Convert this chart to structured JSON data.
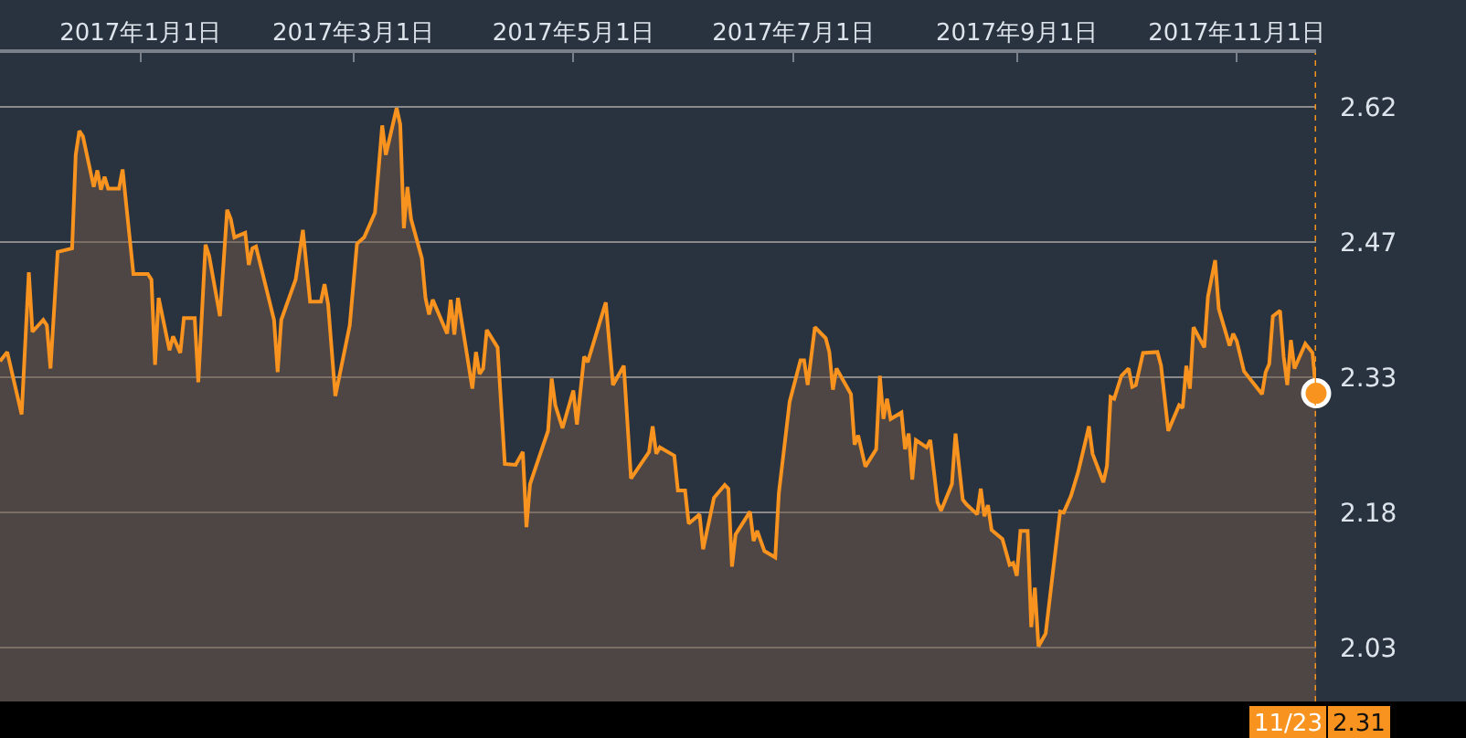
{
  "chart_data": {
    "type": "area",
    "xlim": [
      "2016-11-23",
      "2017-11-23"
    ],
    "xticks": [
      {
        "value": "2017-01-01",
        "label": "2017年1月1日"
      },
      {
        "value": "2017-03-01",
        "label": "2017年3月1日"
      },
      {
        "value": "2017-05-01",
        "label": "2017年5月1日"
      },
      {
        "value": "2017-07-01",
        "label": "2017年7月1日"
      },
      {
        "value": "2017-09-01",
        "label": "2017年9月1日"
      },
      {
        "value": "2017-11-01",
        "label": "2017年11月1日"
      }
    ],
    "ylim": [
      1.974,
      2.681
    ],
    "yticks": [
      {
        "value": 2.0325,
        "label": "2.03"
      },
      {
        "value": 2.18,
        "label": "2.18"
      },
      {
        "value": 2.3275,
        "label": "2.33"
      },
      {
        "value": 2.475,
        "label": "2.47"
      },
      {
        "value": 2.6225,
        "label": "2.62"
      }
    ],
    "grid": "y",
    "ref_lines": [
      {
        "axis": "x",
        "value": "2017-11-23",
        "color": "#f7931e",
        "line_style": "dotted"
      }
    ],
    "annotations": [
      "11/23",
      "2.31"
    ],
    "series": [
      {
        "color": "#f7931e",
        "x": [
          "2016-11-23",
          "2016-11-25",
          "2016-11-29",
          "2016-12-01",
          "2016-12-02",
          "2016-12-05",
          "2016-12-06",
          "2016-12-07",
          "2016-12-09",
          "2016-12-13",
          "2016-12-14",
          "2016-12-15",
          "2016-12-16",
          "2016-12-19",
          "2016-12-20",
          "2016-12-21",
          "2016-12-22",
          "2016-12-23",
          "2016-12-26",
          "2016-12-27",
          "2016-12-30",
          "2017-01-03",
          "2017-01-04",
          "2017-01-05",
          "2017-01-06",
          "2017-01-09",
          "2017-01-10",
          "2017-01-12",
          "2017-01-13",
          "2017-01-16",
          "2017-01-17",
          "2017-01-19",
          "2017-01-20",
          "2017-01-23",
          "2017-01-25",
          "2017-01-26",
          "2017-01-27",
          "2017-01-30",
          "2017-01-31",
          "2017-02-01",
          "2017-02-02",
          "2017-02-07",
          "2017-02-08",
          "2017-02-09",
          "2017-02-13",
          "2017-02-15",
          "2017-02-17",
          "2017-02-20",
          "2017-02-21",
          "2017-02-22",
          "2017-02-24",
          "2017-02-28",
          "2017-03-02",
          "2017-03-04",
          "2017-03-07",
          "2017-03-09",
          "2017-03-10",
          "2017-03-13",
          "2017-03-14",
          "2017-03-15",
          "2017-03-16",
          "2017-03-17",
          "2017-03-20",
          "2017-03-21",
          "2017-03-22",
          "2017-03-23",
          "2017-03-27",
          "2017-03-28",
          "2017-03-29",
          "2017-03-30",
          "2017-04-03",
          "2017-04-04",
          "2017-04-05",
          "2017-04-06",
          "2017-04-07",
          "2017-04-10",
          "2017-04-12",
          "2017-04-15",
          "2017-04-17",
          "2017-04-18",
          "2017-04-19",
          "2017-04-22",
          "2017-04-24",
          "2017-04-25",
          "2017-04-26",
          "2017-04-28",
          "2017-05-01",
          "2017-05-02",
          "2017-05-04",
          "2017-05-05",
          "2017-05-10",
          "2017-05-12",
          "2017-05-15",
          "2017-05-17",
          "2017-05-22",
          "2017-05-23",
          "2017-05-24",
          "2017-05-25",
          "2017-05-29",
          "2017-05-30",
          "2017-06-01",
          "2017-06-02",
          "2017-06-05",
          "2017-06-06",
          "2017-06-09",
          "2017-06-12",
          "2017-06-13",
          "2017-06-14",
          "2017-06-15",
          "2017-06-19",
          "2017-06-20",
          "2017-06-21",
          "2017-06-23",
          "2017-06-26",
          "2017-06-27",
          "2017-06-30",
          "2017-07-03",
          "2017-07-04",
          "2017-07-05",
          "2017-07-07",
          "2017-07-10",
          "2017-07-11",
          "2017-07-12",
          "2017-07-13",
          "2017-07-17",
          "2017-07-18",
          "2017-07-19",
          "2017-07-21",
          "2017-07-24",
          "2017-07-25",
          "2017-07-26",
          "2017-07-27",
          "2017-07-28",
          "2017-07-31",
          "2017-08-01",
          "2017-08-02",
          "2017-08-03",
          "2017-08-04",
          "2017-08-07",
          "2017-08-08",
          "2017-08-10",
          "2017-08-11",
          "2017-08-14",
          "2017-08-15",
          "2017-08-17",
          "2017-08-18",
          "2017-08-21",
          "2017-08-22",
          "2017-08-23",
          "2017-08-24",
          "2017-08-25",
          "2017-08-28",
          "2017-08-30",
          "2017-08-31",
          "2017-09-01",
          "2017-09-02",
          "2017-09-04",
          "2017-09-05",
          "2017-09-06",
          "2017-09-07",
          "2017-09-09",
          "2017-09-11",
          "2017-09-13",
          "2017-09-14",
          "2017-09-16",
          "2017-09-18",
          "2017-09-20",
          "2017-09-21",
          "2017-09-22",
          "2017-09-25",
          "2017-09-26",
          "2017-09-27",
          "2017-09-28",
          "2017-09-30",
          "2017-10-02",
          "2017-10-03",
          "2017-10-04",
          "2017-10-06",
          "2017-10-10",
          "2017-10-11",
          "2017-10-13",
          "2017-10-16",
          "2017-10-17",
          "2017-10-18",
          "2017-10-19",
          "2017-10-20",
          "2017-10-23",
          "2017-10-24",
          "2017-10-26",
          "2017-10-27",
          "2017-10-30",
          "2017-10-31",
          "2017-11-01",
          "2017-11-03",
          "2017-11-07",
          "2017-11-08",
          "2017-11-09",
          "2017-11-10",
          "2017-11-11",
          "2017-11-13",
          "2017-11-14",
          "2017-11-15",
          "2017-11-16",
          "2017-11-17",
          "2017-11-20",
          "2017-11-22",
          "2017-11-23"
        ],
        "values": [
          2.345,
          2.355,
          2.287,
          2.442,
          2.377,
          2.39,
          2.384,
          2.337,
          2.464,
          2.468,
          2.57,
          2.596,
          2.59,
          2.535,
          2.553,
          2.532,
          2.546,
          2.533,
          2.533,
          2.554,
          2.44,
          2.44,
          2.434,
          2.341,
          2.414,
          2.357,
          2.372,
          2.354,
          2.392,
          2.392,
          2.322,
          2.472,
          2.46,
          2.394,
          2.51,
          2.5,
          2.48,
          2.485,
          2.45,
          2.468,
          2.47,
          2.39,
          2.333,
          2.39,
          2.434,
          2.488,
          2.41,
          2.41,
          2.429,
          2.407,
          2.307,
          2.384,
          2.473,
          2.48,
          2.507,
          2.602,
          2.57,
          2.621,
          2.603,
          2.49,
          2.535,
          2.5,
          2.457,
          2.414,
          2.396,
          2.412,
          2.375,
          2.412,
          2.374,
          2.414,
          2.315,
          2.355,
          2.331,
          2.337,
          2.379,
          2.36,
          2.233,
          2.232,
          2.246,
          2.164,
          2.211,
          2.246,
          2.269,
          2.326,
          2.297,
          2.272,
          2.313,
          2.276,
          2.35,
          2.344,
          2.409,
          2.319,
          2.34,
          2.217,
          2.246,
          2.274,
          2.244,
          2.251,
          2.242,
          2.204,
          2.204,
          2.168,
          2.178,
          2.14,
          2.196,
          2.21,
          2.206,
          2.121,
          2.156,
          2.181,
          2.149,
          2.16,
          2.138,
          2.131,
          2.201,
          2.301,
          2.346,
          2.346,
          2.319,
          2.382,
          2.37,
          2.355,
          2.314,
          2.337,
          2.309,
          2.254,
          2.264,
          2.23,
          2.249,
          2.329,
          2.282,
          2.304,
          2.282,
          2.289,
          2.249,
          2.266,
          2.216,
          2.259,
          2.251,
          2.259,
          2.191,
          2.182,
          2.211,
          2.266,
          2.194,
          2.189,
          2.178,
          2.206,
          2.176,
          2.188,
          2.161,
          2.151,
          2.123,
          2.125,
          2.111,
          2.16,
          2.16,
          2.055,
          2.098,
          2.034,
          2.048,
          2.115,
          2.181,
          2.18,
          2.198,
          2.224,
          2.257,
          2.274,
          2.244,
          2.213,
          2.231,
          2.306,
          2.304,
          2.329,
          2.337,
          2.317,
          2.319,
          2.354,
          2.355,
          2.34,
          2.269,
          2.297,
          2.294,
          2.34,
          2.315,
          2.382,
          2.36,
          2.415,
          2.455,
          2.402,
          2.362,
          2.375,
          2.367,
          2.334,
          2.314,
          2.309,
          2.333,
          2.342,
          2.394,
          2.4,
          2.35,
          2.319,
          2.368,
          2.337,
          2.364,
          2.354,
          2.31
        ]
      },
      {
        "type": "scatter",
        "color": "#f7931e",
        "marker": "circle",
        "x": [
          "2017-11-23"
        ],
        "values": [
          2.31
        ]
      }
    ]
  }
}
